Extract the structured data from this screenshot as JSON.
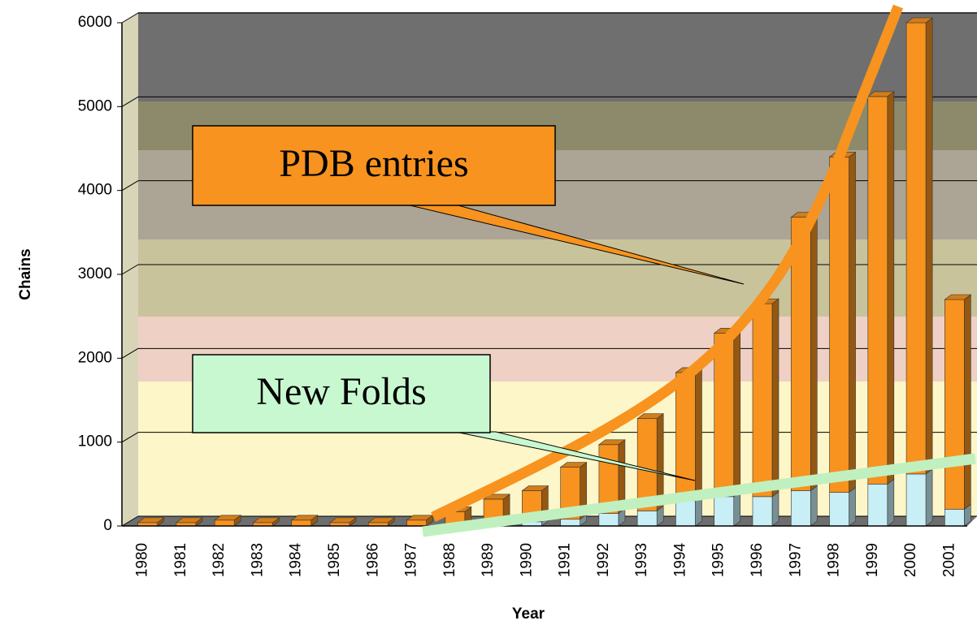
{
  "chart_data": {
    "type": "stacked_bar_3d",
    "x_label": "Year",
    "y_label": "Chains",
    "categories": [
      "1980",
      "1981",
      "1982",
      "1983",
      "1984",
      "1985",
      "1986",
      "1987",
      "1988",
      "1989",
      "1990",
      "1991",
      "1992",
      "1993",
      "1994",
      "1995",
      "1996",
      "1997",
      "1998",
      "1999",
      "2000",
      "2001"
    ],
    "series": [
      {
        "name": "New Folds",
        "color": "#c8eef6",
        "values": [
          0,
          0,
          0,
          0,
          0,
          0,
          0,
          0,
          20,
          30,
          50,
          80,
          150,
          180,
          300,
          350,
          350,
          420,
          400,
          500,
          620,
          200
        ]
      },
      {
        "name": "PDB entries",
        "color": "#f7931e",
        "values": [
          40,
          40,
          70,
          40,
          70,
          40,
          40,
          70,
          150,
          290,
          370,
          620,
          820,
          1100,
          1530,
          1950,
          2300,
          3260,
          4000,
          4620,
          5380,
          2500
        ]
      }
    ],
    "ylim": [
      0,
      6000
    ],
    "yticks": [
      0,
      1000,
      2000,
      3000,
      4000,
      5000,
      6000
    ],
    "grid": true
  }
}
